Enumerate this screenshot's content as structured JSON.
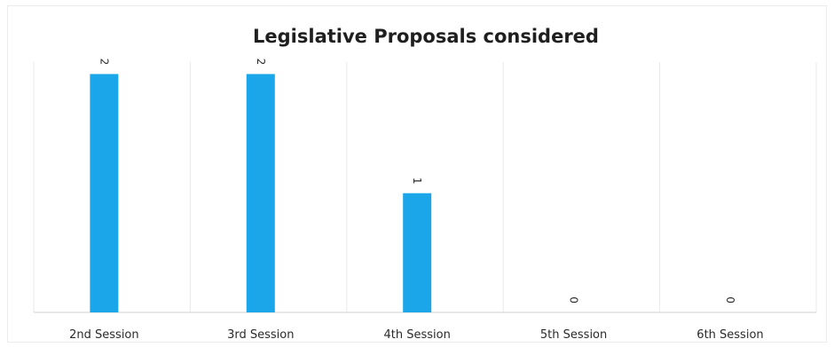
{
  "chart_data": {
    "type": "bar",
    "title": "Legislative Proposals considered",
    "categories": [
      "2nd Session",
      "3rd Session",
      "4th Session",
      "5th Session",
      "6th Session"
    ],
    "values": [
      2,
      2,
      1,
      0,
      0
    ],
    "xlabel": "",
    "ylabel": "",
    "ylim": [
      0,
      2.1
    ],
    "bar_color": "#1aa6e8",
    "grid": true,
    "legend": "none",
    "data_labels": "rotated-above-bar"
  }
}
